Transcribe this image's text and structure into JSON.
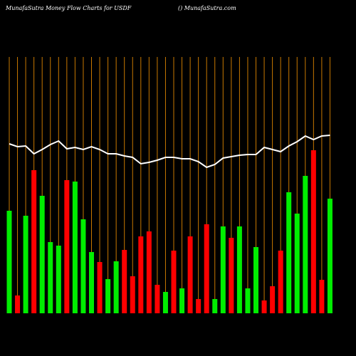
{
  "chart_data": {
    "type": "bar_line",
    "title": "MunafaSutra  Money Flow  Charts for USDF",
    "subtitle": "() MunafaSutra.com",
    "ylim": [
      0,
      360
    ],
    "grid_color": "#c87800",
    "bars": {
      "values": [
        144,
        25,
        137,
        201,
        165,
        100,
        95,
        187,
        185,
        132,
        86,
        72,
        48,
        73,
        89,
        52,
        108,
        115,
        40,
        30,
        88,
        35,
        108,
        20,
        125,
        20,
        122,
        106,
        122,
        35,
        93,
        18,
        38,
        88,
        170,
        140,
        193,
        229,
        47,
        161
      ],
      "colors": [
        "#00ee00",
        "#ff0000",
        "#00ee00",
        "#ff0000",
        "#00ee00",
        "#00ee00",
        "#00ee00",
        "#ff0000",
        "#00ee00",
        "#00ee00",
        "#00ee00",
        "#ff0000",
        "#00ee00",
        "#00ee00",
        "#ff0000",
        "#ff0000",
        "#ff0000",
        "#ff0000",
        "#ff0000",
        "#00ee00",
        "#ff0000",
        "#00ee00",
        "#ff0000",
        "#ff0000",
        "#ff0000",
        "#00ee00",
        "#00ee00",
        "#ff0000",
        "#00ee00",
        "#00ee00",
        "#00ee00",
        "#ff0000",
        "#ff0000",
        "#ff0000",
        "#00ee00",
        "#00ee00",
        "#00ee00",
        "#ff0000",
        "#ff0000",
        "#00ee00"
      ]
    },
    "line": {
      "color": "#ffffff",
      "values": [
        238,
        234,
        235,
        224,
        230,
        237,
        242,
        231,
        233,
        230,
        234,
        230,
        224,
        224,
        221,
        219,
        210,
        212,
        215,
        219,
        219,
        217,
        217,
        213,
        205,
        209,
        218,
        220,
        222,
        223,
        223,
        233,
        230,
        227,
        235,
        241,
        249,
        244,
        249,
        250
      ]
    }
  }
}
